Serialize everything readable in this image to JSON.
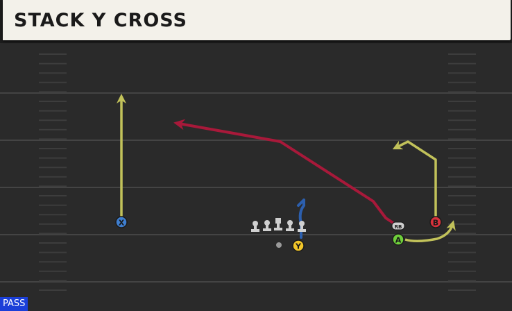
{
  "play": {
    "title": "STACK Y CROSS",
    "type": "PASS"
  },
  "players": [
    {
      "id": "x",
      "label": "X",
      "color": "#3f7fd0"
    },
    {
      "id": "y",
      "label": "Y",
      "color": "#f2c629"
    },
    {
      "id": "a",
      "label": "A",
      "color": "#6fcf3b"
    },
    {
      "id": "b",
      "label": "B",
      "color": "#d8323c"
    },
    {
      "id": "rb",
      "label": "RB",
      "color": "#cfcfcf"
    }
  ],
  "colors": {
    "route_yellow": "#c2c25a",
    "route_red": "#a8193a",
    "route_blue": "#2c5fae",
    "field": "#2a2a2a",
    "yard_line": "#444444",
    "title_bg": "#f3f1ea",
    "badge_bg": "#1b3fd8"
  }
}
